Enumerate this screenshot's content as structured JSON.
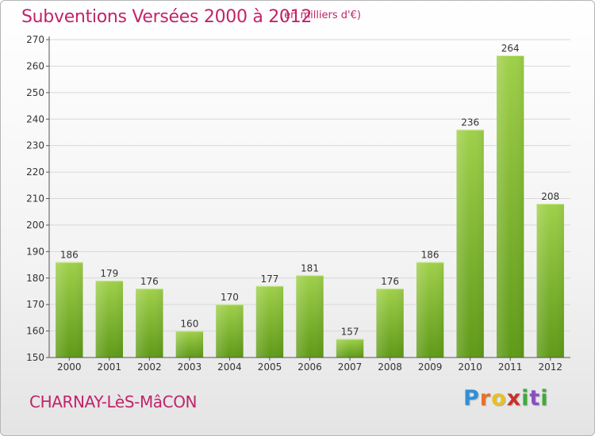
{
  "header": {
    "title": "Subventions Versées 2000 à 2012",
    "subtitle": "(en milliers d'€)"
  },
  "footer": {
    "commune": "CHARNAY-LèS-MâCON",
    "logo_text": "Proxiti"
  },
  "colors": {
    "title": "#c0246a",
    "bar_top": "#9fd04a",
    "bar_bottom": "#5f9a18",
    "axis": "#555555",
    "grid": "#d8d8d8"
  },
  "chart_data": {
    "type": "bar",
    "title": "Subventions Versées 2000 à 2012",
    "subtitle": "(en milliers d'€)",
    "xlabel": "",
    "ylabel": "",
    "categories": [
      "2000",
      "2001",
      "2002",
      "2003",
      "2004",
      "2005",
      "2006",
      "2007",
      "2008",
      "2009",
      "2010",
      "2011",
      "2012"
    ],
    "values": [
      186,
      179,
      176,
      160,
      170,
      177,
      181,
      157,
      176,
      186,
      236,
      264,
      208
    ],
    "ylim": [
      150,
      270
    ],
    "yticks": [
      150,
      160,
      170,
      180,
      190,
      200,
      210,
      220,
      230,
      240,
      250,
      260,
      270
    ],
    "grid": "horizontal",
    "data_labels": true
  }
}
